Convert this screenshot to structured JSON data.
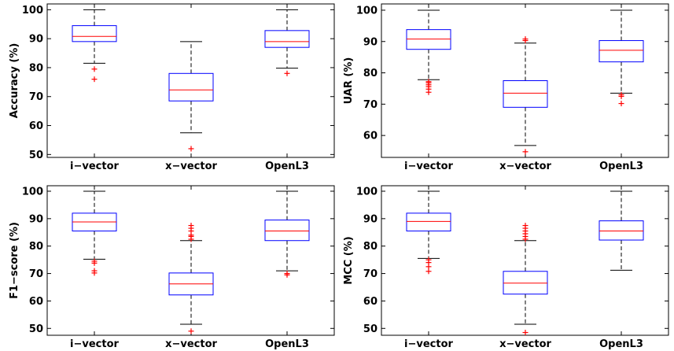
{
  "chart_data": [
    {
      "type": "box",
      "ylabel": "Accuracy (%)",
      "categories": [
        "i−vector",
        "x−vector",
        "OpenL3"
      ],
      "yticks": [
        50,
        60,
        70,
        80,
        90,
        100
      ],
      "ylim": [
        49,
        102
      ],
      "boxes": [
        {
          "whisker_low": 81.5,
          "q1": 89,
          "median": 90.8,
          "q3": 94.5,
          "whisker_high": 100,
          "outliers": [
            79.5,
            76
          ]
        },
        {
          "whisker_low": 57.5,
          "q1": 68.5,
          "median": 72.3,
          "q3": 78,
          "whisker_high": 89,
          "outliers": [
            52
          ]
        },
        {
          "whisker_low": 79.8,
          "q1": 87,
          "median": 89,
          "q3": 92.8,
          "whisker_high": 100,
          "outliers": [
            78
          ]
        }
      ]
    },
    {
      "type": "box",
      "ylabel": "UAR (%)",
      "categories": [
        "i−vector",
        "x−vector",
        "OpenL3"
      ],
      "yticks": [
        60,
        70,
        80,
        90,
        100
      ],
      "ylim": [
        53,
        102
      ],
      "boxes": [
        {
          "whisker_low": 77.8,
          "q1": 87.5,
          "median": 90.8,
          "q3": 93.8,
          "whisker_high": 100,
          "outliers": [
            77.2,
            76.8,
            76.2,
            75.6,
            74.8,
            73.8
          ]
        },
        {
          "whisker_low": 56.8,
          "q1": 69,
          "median": 73.5,
          "q3": 77.5,
          "whisker_high": 89.5,
          "outliers": [
            90.8,
            90.3,
            54.8
          ]
        },
        {
          "whisker_low": 73.5,
          "q1": 83.5,
          "median": 87.2,
          "q3": 90.3,
          "whisker_high": 100,
          "outliers": [
            73,
            72.5,
            70.2
          ]
        }
      ]
    },
    {
      "type": "box",
      "ylabel": "F1−score (%)",
      "categories": [
        "i−vector",
        "x−vector",
        "OpenL3"
      ],
      "yticks": [
        50,
        60,
        70,
        80,
        90,
        100
      ],
      "ylim": [
        47.5,
        102
      ],
      "boxes": [
        {
          "whisker_low": 75.2,
          "q1": 85.5,
          "median": 88.8,
          "q3": 92,
          "whisker_high": 100,
          "outliers": [
            74.5,
            73.8,
            71,
            70.2
          ]
        },
        {
          "whisker_low": 51.5,
          "q1": 62.2,
          "median": 66.2,
          "q3": 70.2,
          "whisker_high": 82,
          "outliers": [
            87.5,
            86.5,
            85.5,
            84,
            83.5,
            82.5,
            49
          ]
        },
        {
          "whisker_low": 71,
          "q1": 82,
          "median": 85.5,
          "q3": 89.5,
          "whisker_high": 100,
          "outliers": [
            70,
            69.5
          ]
        }
      ]
    },
    {
      "type": "box",
      "ylabel": "MCC (%)",
      "categories": [
        "i−vector",
        "x−vector",
        "OpenL3"
      ],
      "yticks": [
        50,
        60,
        70,
        80,
        90,
        100
      ],
      "ylim": [
        47.5,
        102
      ],
      "boxes": [
        {
          "whisker_low": 75.5,
          "q1": 85.5,
          "median": 89,
          "q3": 92,
          "whisker_high": 100,
          "outliers": [
            75,
            74,
            72.5,
            70.8
          ]
        },
        {
          "whisker_low": 51.5,
          "q1": 62.5,
          "median": 66.5,
          "q3": 70.8,
          "whisker_high": 82,
          "outliers": [
            87.5,
            86.5,
            85.5,
            84.5,
            83.5,
            82.5,
            48.5
          ]
        },
        {
          "whisker_low": 71.2,
          "q1": 82.2,
          "median": 85.5,
          "q3": 89.2,
          "whisker_high": 100,
          "outliers": []
        }
      ]
    }
  ],
  "colors": {
    "box": "#0000ff",
    "median": "#ff0000",
    "whisker": "#000000",
    "outlier": "#ff0000",
    "axes": "#000000"
  }
}
